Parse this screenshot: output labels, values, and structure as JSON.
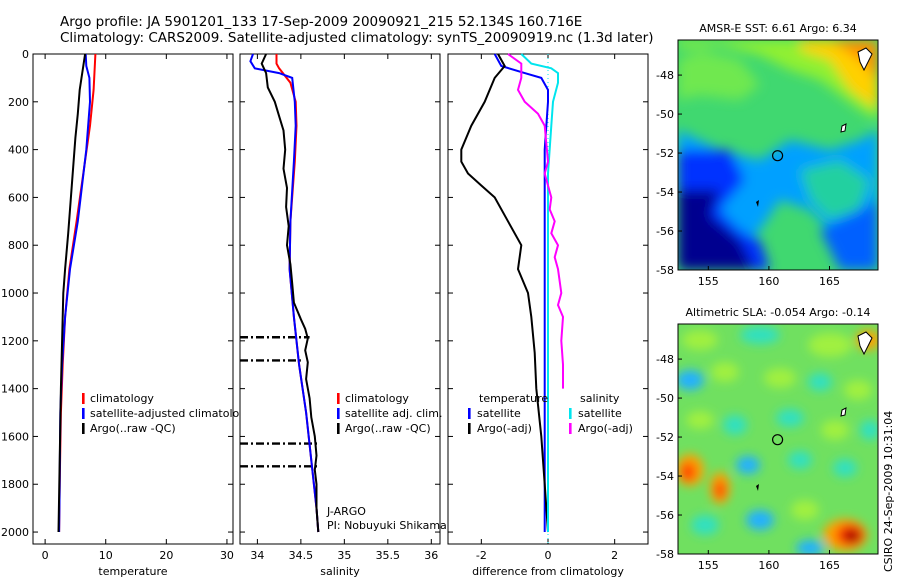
{
  "title": {
    "line1": "Argo profile: JA 5901201_133 17-Sep-2009 20090921_215 52.134S 160.716E",
    "line2": "Climatology: CARS2009. Satellite-adjusted climatology: synTS_20090919.nc (1.3d later)"
  },
  "credit": "CSIRO 24-Sep-2009 10:31:04",
  "chart_data": [
    {
      "id": "temperature",
      "type": "line",
      "xlabel": "temperature",
      "ylabel": "",
      "xlim": [
        -2,
        31
      ],
      "ylim": [
        2050,
        0
      ],
      "x_ticks": [
        0,
        10,
        20,
        30
      ],
      "y_ticks": [
        0,
        200,
        400,
        600,
        800,
        1000,
        1200,
        1400,
        1600,
        1800,
        2000
      ],
      "legend": {
        "placement": "lower-right",
        "entries": [
          "climatology",
          "satellite-adjusted climatology",
          "Argo(..raw -QC)"
        ]
      },
      "series": [
        {
          "name": "climatology",
          "color": "#ff0000",
          "points": [
            [
              8.3,
              0
            ],
            [
              8.2,
              50
            ],
            [
              8.0,
              150
            ],
            [
              7.4,
              300
            ],
            [
              6.3,
              500
            ],
            [
              5.2,
              700
            ],
            [
              4.0,
              900
            ],
            [
              3.3,
              1100
            ],
            [
              2.9,
              1300
            ],
            [
              2.6,
              1500
            ],
            [
              2.4,
              1800
            ],
            [
              2.3,
              2000
            ]
          ]
        },
        {
          "name": "satellite-adjusted climatology",
          "color": "#0000ff",
          "points": [
            [
              6.7,
              0
            ],
            [
              6.8,
              50
            ],
            [
              7.3,
              100
            ],
            [
              7.4,
              200
            ],
            [
              6.8,
              400
            ],
            [
              5.4,
              700
            ],
            [
              4.1,
              900
            ],
            [
              3.3,
              1100
            ],
            [
              2.8,
              1300
            ],
            [
              2.5,
              1500
            ],
            [
              2.4,
              1800
            ],
            [
              2.3,
              2000
            ]
          ]
        },
        {
          "name": "Argo(..raw -QC)",
          "color": "#000000",
          "points": [
            [
              6.6,
              0
            ],
            [
              6.3,
              50
            ],
            [
              6.0,
              100
            ],
            [
              5.7,
              150
            ],
            [
              5.4,
              250
            ],
            [
              5.0,
              350
            ],
            [
              4.7,
              450
            ],
            [
              4.4,
              550
            ],
            [
              4.1,
              650
            ],
            [
              3.8,
              750
            ],
            [
              3.3,
              900
            ],
            [
              3.0,
              1000
            ],
            [
              2.8,
              1200
            ],
            [
              2.6,
              1400
            ],
            [
              2.4,
              1700
            ],
            [
              2.2,
              2000
            ]
          ]
        }
      ]
    },
    {
      "id": "salinity",
      "type": "line",
      "xlabel": "salinity",
      "ylabel": "",
      "xlim": [
        33.8,
        36.1
      ],
      "ylim": [
        2050,
        0
      ],
      "x_ticks": [
        34,
        34.5,
        35,
        35.5,
        36
      ],
      "x_tick_labels": [
        "34",
        "34.5",
        "35",
        "35.5",
        "36"
      ],
      "legend": {
        "placement": "lower-right",
        "entries": [
          "climatology",
          "satellite adj. clim.",
          "Argo(..raw -QC)"
        ]
      },
      "annotation": [
        "J-ARGO",
        "PI: Nobuyuki Shikama"
      ],
      "series": [
        {
          "name": "climatology",
          "color": "#ff0000",
          "points": [
            [
              34.22,
              0
            ],
            [
              34.22,
              40
            ],
            [
              34.25,
              60
            ],
            [
              34.38,
              120
            ],
            [
              34.44,
              200
            ],
            [
              34.45,
              300
            ],
            [
              34.43,
              450
            ],
            [
              34.38,
              700
            ],
            [
              34.37,
              900
            ],
            [
              34.42,
              1100
            ],
            [
              34.48,
              1300
            ],
            [
              34.56,
              1500
            ],
            [
              34.62,
              1700
            ],
            [
              34.68,
              1900
            ],
            [
              34.7,
              2000
            ]
          ]
        },
        {
          "name": "satellite adj. clim.",
          "color": "#0000ff",
          "points": [
            [
              33.95,
              0
            ],
            [
              33.92,
              30
            ],
            [
              33.97,
              60
            ],
            [
              34.25,
              80
            ],
            [
              34.4,
              100
            ],
            [
              34.43,
              200
            ],
            [
              34.44,
              300
            ],
            [
              34.42,
              450
            ],
            [
              34.38,
              700
            ],
            [
              34.37,
              900
            ],
            [
              34.42,
              1100
            ],
            [
              34.48,
              1300
            ],
            [
              34.56,
              1500
            ],
            [
              34.62,
              1700
            ],
            [
              34.68,
              1900
            ],
            [
              34.7,
              2000
            ]
          ]
        },
        {
          "name": "Argo(..raw -QC)",
          "color": "#000000",
          "points": [
            [
              34.1,
              0
            ],
            [
              34.05,
              40
            ],
            [
              34.1,
              80
            ],
            [
              34.12,
              140
            ],
            [
              34.2,
              200
            ],
            [
              34.25,
              260
            ],
            [
              34.3,
              320
            ],
            [
              34.32,
              400
            ],
            [
              34.3,
              480
            ],
            [
              34.34,
              560
            ],
            [
              34.33,
              640
            ],
            [
              34.36,
              720
            ],
            [
              34.34,
              800
            ],
            [
              34.38,
              880
            ],
            [
              34.4,
              960
            ],
            [
              34.42,
              1040
            ],
            [
              34.5,
              1110
            ],
            [
              34.55,
              1150
            ],
            [
              34.58,
              1190
            ],
            [
              34.55,
              1240
            ],
            [
              34.58,
              1290
            ],
            [
              34.56,
              1360
            ],
            [
              34.6,
              1440
            ],
            [
              34.62,
              1520
            ],
            [
              34.66,
              1600
            ],
            [
              34.68,
              1680
            ],
            [
              34.66,
              1740
            ],
            [
              34.68,
              1800
            ],
            [
              34.68,
              1900
            ],
            [
              34.7,
              2000
            ]
          ]
        }
      ]
    },
    {
      "id": "difference",
      "type": "line",
      "xlabel": "difference from climatology",
      "ylabel": "",
      "xlim": [
        -3.0,
        3.0
      ],
      "ylim": [
        2050,
        0
      ],
      "x_ticks": [
        -2,
        0,
        2
      ],
      "legend": {
        "placement": "lower-middle",
        "entries": [
          "temperature",
          "satellite",
          "Argo(-adj)",
          "salinity",
          "satellite",
          "Argo(-adj)"
        ]
      },
      "series": [
        {
          "name": "temperature satellite",
          "color": "#0000ff",
          "points": [
            [
              -1.6,
              0
            ],
            [
              -1.4,
              50
            ],
            [
              -0.7,
              80
            ],
            [
              -0.2,
              100
            ],
            [
              0.0,
              150
            ],
            [
              0.0,
              200
            ],
            [
              -0.1,
              400
            ],
            [
              -0.1,
              700
            ],
            [
              -0.1,
              900
            ],
            [
              -0.1,
              1100
            ],
            [
              -0.1,
              1300
            ],
            [
              -0.1,
              1500
            ],
            [
              -0.1,
              1700
            ],
            [
              -0.1,
              2000
            ]
          ]
        },
        {
          "name": "temperature Argo(-adj)",
          "color": "#000000",
          "points": [
            [
              -1.5,
              0
            ],
            [
              -1.3,
              50
            ],
            [
              -1.6,
              100
            ],
            [
              -1.9,
              200
            ],
            [
              -2.3,
              300
            ],
            [
              -2.6,
              400
            ],
            [
              -2.6,
              450
            ],
            [
              -2.4,
              500
            ],
            [
              -2.0,
              550
            ],
            [
              -1.6,
              600
            ],
            [
              -1.2,
              700
            ],
            [
              -0.8,
              800
            ],
            [
              -0.9,
              900
            ],
            [
              -0.6,
              1000
            ],
            [
              -0.5,
              1100
            ],
            [
              -0.4,
              1250
            ],
            [
              -0.35,
              1400
            ],
            [
              -0.2,
              1600
            ],
            [
              -0.1,
              1800
            ],
            [
              0.0,
              2000
            ]
          ]
        },
        {
          "name": "salinity satellite",
          "color": "#00e5ee",
          "points": [
            [
              -0.8,
              0
            ],
            [
              -0.5,
              40
            ],
            [
              0.1,
              60
            ],
            [
              0.3,
              80
            ],
            [
              0.3,
              120
            ],
            [
              0.15,
              200
            ],
            [
              0.1,
              300
            ],
            [
              0.0,
              500
            ],
            [
              0.0,
              700
            ],
            [
              0.0,
              900
            ],
            [
              0.0,
              1200
            ],
            [
              0.0,
              1500
            ],
            [
              0.0,
              1800
            ],
            [
              0.0,
              2000
            ]
          ]
        },
        {
          "name": "salinity Argo(-adj)",
          "color": "#ff00ff",
          "points": [
            [
              -1.2,
              0
            ],
            [
              -0.8,
              40
            ],
            [
              -0.8,
              100
            ],
            [
              -0.9,
              150
            ],
            [
              -0.7,
              200
            ],
            [
              -0.3,
              250
            ],
            [
              -0.1,
              300
            ],
            [
              0.0,
              450
            ],
            [
              -0.1,
              500
            ],
            [
              0.0,
              550
            ],
            [
              0.1,
              600
            ],
            [
              0.05,
              650
            ],
            [
              0.2,
              700
            ],
            [
              0.1,
              750
            ],
            [
              0.3,
              800
            ],
            [
              0.2,
              850
            ],
            [
              0.3,
              900
            ],
            [
              0.4,
              1000
            ],
            [
              0.3,
              1050
            ],
            [
              0.45,
              1100
            ],
            [
              0.4,
              1200
            ],
            [
              0.45,
              1300
            ],
            [
              0.45,
              1400
            ]
          ]
        }
      ],
      "zero_line_color": "#00e5ee"
    },
    {
      "id": "sst-map",
      "type": "heatmap",
      "title": "AMSR-E SST: 6.61 Argo: 6.34",
      "xlim": [
        152.5,
        169
      ],
      "ylim": [
        -58,
        -46.2
      ],
      "x_ticks": [
        155,
        160,
        165
      ],
      "y_ticks": [
        -48,
        -50,
        -52,
        -54,
        -56,
        -58
      ],
      "marker": {
        "lon": 160.716,
        "lat": -52.134
      },
      "colors": [
        "#00008f",
        "#0030ff",
        "#00a0ff",
        "#20d0a0",
        "#40e060",
        "#90f030",
        "#c0f020",
        "#ffd000",
        "#ff9000"
      ]
    },
    {
      "id": "sla-map",
      "type": "heatmap",
      "title": "Altimetric SLA: -0.054 Argo: -0.14",
      "xlim": [
        152.5,
        169
      ],
      "ylim": [
        -58,
        -46.2
      ],
      "x_ticks": [
        155,
        160,
        165
      ],
      "y_ticks": [
        -48,
        -50,
        -52,
        -54,
        -56,
        -58
      ],
      "marker": {
        "lon": 160.716,
        "lat": -52.134
      },
      "colors": [
        "#0050ff",
        "#20b0ff",
        "#30e0c0",
        "#60e060",
        "#a0f040",
        "#e0e020",
        "#ffa000",
        "#ff3000",
        "#900000"
      ]
    }
  ]
}
